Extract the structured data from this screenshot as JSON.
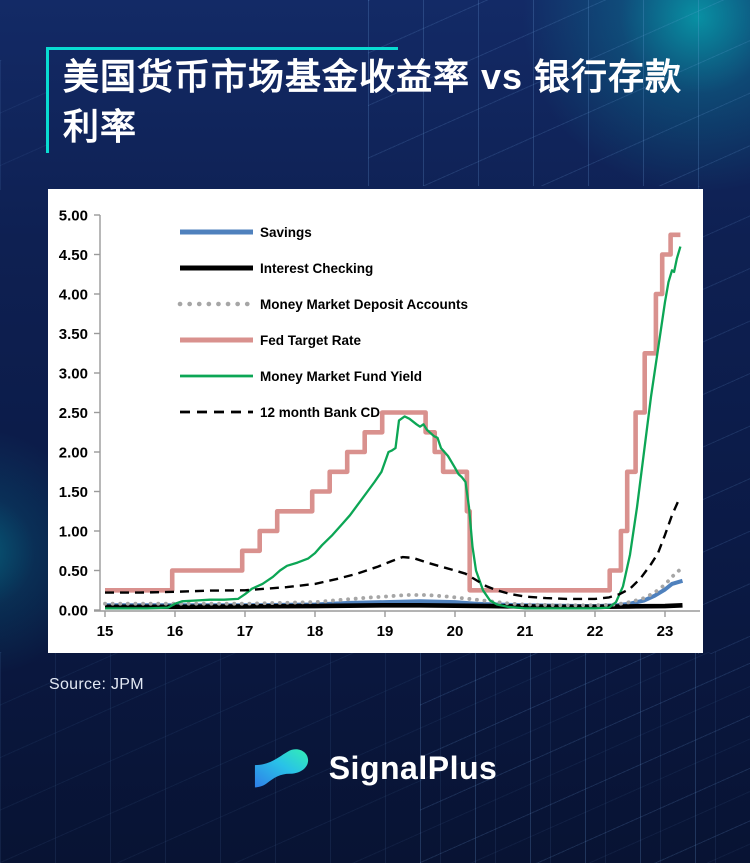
{
  "page": {
    "bg_color": "#0b1a46",
    "accent_color": "#09dcd2"
  },
  "header": {
    "title_line1": "美国货币市场基金收益率 vs 银行存款",
    "title_line2": "利率"
  },
  "source": {
    "label": "Source: JPM"
  },
  "brand": {
    "name": "SignalPlus",
    "icon": "wave-logo-icon"
  },
  "chart_data": {
    "type": "line",
    "title": "美国货币市场基金收益率 vs 银行存款利率",
    "xlabel": "",
    "ylabel": "",
    "xlim": [
      15,
      23.5
    ],
    "ylim": [
      0,
      5
    ],
    "grid": false,
    "legend_position": "upper-left-inside",
    "axis_color": "#9a9a9a",
    "tick_label_color": "#000000",
    "ytick_values": [
      0,
      0.5,
      1,
      1.5,
      2,
      2.5,
      3,
      3.5,
      4,
      4.5,
      5
    ],
    "ytick_labels": [
      "0.00",
      "0.50",
      "1.00",
      "1.50",
      "2.00",
      "2.50",
      "3.00",
      "3.50",
      "4.00",
      "4.50",
      "5.00"
    ],
    "xtick_values": [
      15,
      16,
      17,
      18,
      19,
      20,
      21,
      22,
      23
    ],
    "xtick_labels": [
      "15",
      "16",
      "17",
      "18",
      "19",
      "20",
      "21",
      "22",
      "23"
    ],
    "series": [
      {
        "name": "Savings",
        "color": "#4f81bd",
        "style": "solid",
        "width": 4,
        "points": [
          [
            15,
            0.06
          ],
          [
            16,
            0.06
          ],
          [
            17,
            0.06
          ],
          [
            17.5,
            0.065
          ],
          [
            18,
            0.07
          ],
          [
            18.5,
            0.09
          ],
          [
            19,
            0.1
          ],
          [
            19.5,
            0.11
          ],
          [
            20,
            0.1
          ],
          [
            20.3,
            0.08
          ],
          [
            20.6,
            0.07
          ],
          [
            21,
            0.06
          ],
          [
            21.5,
            0.055
          ],
          [
            22,
            0.05
          ],
          [
            22.3,
            0.06
          ],
          [
            22.5,
            0.08
          ],
          [
            22.7,
            0.12
          ],
          [
            22.85,
            0.18
          ],
          [
            23,
            0.26
          ],
          [
            23.1,
            0.33
          ],
          [
            23.25,
            0.37
          ]
        ]
      },
      {
        "name": "Interest Checking",
        "color": "#000000",
        "style": "solid",
        "width": 4.6,
        "points": [
          [
            15,
            0.04
          ],
          [
            16,
            0.04
          ],
          [
            17,
            0.045
          ],
          [
            18,
            0.05
          ],
          [
            19,
            0.06
          ],
          [
            19.5,
            0.06
          ],
          [
            20,
            0.055
          ],
          [
            20.5,
            0.05
          ],
          [
            21,
            0.045
          ],
          [
            21.5,
            0.04
          ],
          [
            22,
            0.04
          ],
          [
            22.5,
            0.045
          ],
          [
            23,
            0.05
          ],
          [
            23.25,
            0.06
          ]
        ]
      },
      {
        "name": "Money Market Deposit Accounts",
        "color": "#a6a6a6",
        "style": "dotted",
        "width": 3.8,
        "points": [
          [
            15,
            0.08
          ],
          [
            15.5,
            0.08
          ],
          [
            16,
            0.08
          ],
          [
            16.5,
            0.08
          ],
          [
            17,
            0.08
          ],
          [
            17.5,
            0.09
          ],
          [
            18,
            0.1
          ],
          [
            18.4,
            0.13
          ],
          [
            18.8,
            0.16
          ],
          [
            19,
            0.17
          ],
          [
            19.3,
            0.19
          ],
          [
            19.6,
            0.19
          ],
          [
            19.9,
            0.17
          ],
          [
            20.2,
            0.14
          ],
          [
            20.5,
            0.11
          ],
          [
            20.8,
            0.08
          ],
          [
            21,
            0.07
          ],
          [
            21.5,
            0.06
          ],
          [
            22,
            0.06
          ],
          [
            22.3,
            0.07
          ],
          [
            22.5,
            0.1
          ],
          [
            22.7,
            0.15
          ],
          [
            22.85,
            0.22
          ],
          [
            23,
            0.32
          ],
          [
            23.1,
            0.42
          ],
          [
            23.2,
            0.5
          ]
        ]
      },
      {
        "name": "Fed Target Rate",
        "color": "#d9918e",
        "style": "solid",
        "width": 4.6,
        "points": [
          [
            15,
            0.25
          ],
          [
            15.96,
            0.25
          ],
          [
            15.96,
            0.5
          ],
          [
            16.96,
            0.5
          ],
          [
            16.96,
            0.75
          ],
          [
            17.21,
            0.75
          ],
          [
            17.21,
            1
          ],
          [
            17.46,
            1
          ],
          [
            17.46,
            1.25
          ],
          [
            17.96,
            1.25
          ],
          [
            17.96,
            1.5
          ],
          [
            18.21,
            1.5
          ],
          [
            18.21,
            1.75
          ],
          [
            18.46,
            1.75
          ],
          [
            18.46,
            2
          ],
          [
            18.71,
            2
          ],
          [
            18.71,
            2.25
          ],
          [
            18.96,
            2.25
          ],
          [
            18.96,
            2.5
          ],
          [
            19.58,
            2.5
          ],
          [
            19.58,
            2.25
          ],
          [
            19.71,
            2.25
          ],
          [
            19.71,
            2
          ],
          [
            19.83,
            2
          ],
          [
            19.83,
            1.75
          ],
          [
            20.17,
            1.75
          ],
          [
            20.17,
            1.25
          ],
          [
            20.21,
            1.25
          ],
          [
            20.21,
            0.25
          ],
          [
            22.21,
            0.25
          ],
          [
            22.21,
            0.5
          ],
          [
            22.37,
            0.5
          ],
          [
            22.37,
            1
          ],
          [
            22.46,
            1
          ],
          [
            22.46,
            1.75
          ],
          [
            22.58,
            1.75
          ],
          [
            22.58,
            2.5
          ],
          [
            22.71,
            2.5
          ],
          [
            22.71,
            3.25
          ],
          [
            22.87,
            3.25
          ],
          [
            22.87,
            4
          ],
          [
            22.96,
            4
          ],
          [
            22.96,
            4.5
          ],
          [
            23.08,
            4.5
          ],
          [
            23.08,
            4.75
          ],
          [
            23.22,
            4.75
          ]
        ]
      },
      {
        "name": "Money Market Fund Yield",
        "color": "#0ca655",
        "style": "solid",
        "width": 2.3,
        "points": [
          [
            15,
            0.02
          ],
          [
            15.3,
            0.02
          ],
          [
            15.6,
            0.02
          ],
          [
            15.9,
            0.03
          ],
          [
            16,
            0.08
          ],
          [
            16.1,
            0.11
          ],
          [
            16.3,
            0.12
          ],
          [
            16.5,
            0.13
          ],
          [
            16.7,
            0.13
          ],
          [
            16.9,
            0.14
          ],
          [
            17,
            0.2
          ],
          [
            17.1,
            0.27
          ],
          [
            17.25,
            0.33
          ],
          [
            17.4,
            0.42
          ],
          [
            17.5,
            0.5
          ],
          [
            17.6,
            0.56
          ],
          [
            17.75,
            0.6
          ],
          [
            17.9,
            0.65
          ],
          [
            18,
            0.72
          ],
          [
            18.1,
            0.82
          ],
          [
            18.25,
            0.95
          ],
          [
            18.4,
            1.1
          ],
          [
            18.5,
            1.2
          ],
          [
            18.6,
            1.32
          ],
          [
            18.75,
            1.5
          ],
          [
            18.85,
            1.62
          ],
          [
            18.95,
            1.75
          ],
          [
            19.05,
            2
          ],
          [
            19.1,
            2.02
          ],
          [
            19.15,
            2.05
          ],
          [
            19.2,
            2.4
          ],
          [
            19.28,
            2.45
          ],
          [
            19.35,
            2.42
          ],
          [
            19.45,
            2.35
          ],
          [
            19.5,
            2.32
          ],
          [
            19.55,
            2.35
          ],
          [
            19.6,
            2.28
          ],
          [
            19.7,
            2.2
          ],
          [
            19.75,
            2.18
          ],
          [
            19.8,
            2.05
          ],
          [
            19.9,
            1.95
          ],
          [
            20,
            1.8
          ],
          [
            20.05,
            1.72
          ],
          [
            20.1,
            1.68
          ],
          [
            20.15,
            1.62
          ],
          [
            20.2,
            1.3
          ],
          [
            20.25,
            0.8
          ],
          [
            20.3,
            0.5
          ],
          [
            20.4,
            0.25
          ],
          [
            20.5,
            0.12
          ],
          [
            20.6,
            0.07
          ],
          [
            20.75,
            0.04
          ],
          [
            21,
            0.02
          ],
          [
            21.5,
            0.02
          ],
          [
            22,
            0.02
          ],
          [
            22.2,
            0.03
          ],
          [
            22.3,
            0.1
          ],
          [
            22.4,
            0.3
          ],
          [
            22.5,
            0.7
          ],
          [
            22.6,
            1.3
          ],
          [
            22.7,
            2
          ],
          [
            22.8,
            2.7
          ],
          [
            22.9,
            3.3
          ],
          [
            23,
            3.9
          ],
          [
            23.05,
            4.15
          ],
          [
            23.1,
            4.3
          ],
          [
            23.13,
            4.28
          ],
          [
            23.17,
            4.45
          ],
          [
            23.22,
            4.6
          ]
        ]
      },
      {
        "name": "12 month Bank CD",
        "color": "#000000",
        "style": "dashed",
        "width": 2.4,
        "points": [
          [
            15,
            0.22
          ],
          [
            15.5,
            0.22
          ],
          [
            16,
            0.23
          ],
          [
            16.5,
            0.245
          ],
          [
            17,
            0.25
          ],
          [
            17.3,
            0.27
          ],
          [
            17.6,
            0.29
          ],
          [
            18,
            0.33
          ],
          [
            18.3,
            0.39
          ],
          [
            18.6,
            0.46
          ],
          [
            18.9,
            0.55
          ],
          [
            19.1,
            0.62
          ],
          [
            19.25,
            0.67
          ],
          [
            19.4,
            0.66
          ],
          [
            19.6,
            0.6
          ],
          [
            19.8,
            0.55
          ],
          [
            20,
            0.5
          ],
          [
            20.15,
            0.46
          ],
          [
            20.3,
            0.38
          ],
          [
            20.45,
            0.3
          ],
          [
            20.6,
            0.25
          ],
          [
            20.8,
            0.2
          ],
          [
            21,
            0.17
          ],
          [
            21.3,
            0.15
          ],
          [
            21.6,
            0.14
          ],
          [
            22,
            0.14
          ],
          [
            22.2,
            0.16
          ],
          [
            22.35,
            0.2
          ],
          [
            22.5,
            0.27
          ],
          [
            22.65,
            0.4
          ],
          [
            22.8,
            0.58
          ],
          [
            22.9,
            0.72
          ],
          [
            23,
            0.95
          ],
          [
            23.1,
            1.2
          ],
          [
            23.2,
            1.4
          ]
        ]
      }
    ]
  }
}
